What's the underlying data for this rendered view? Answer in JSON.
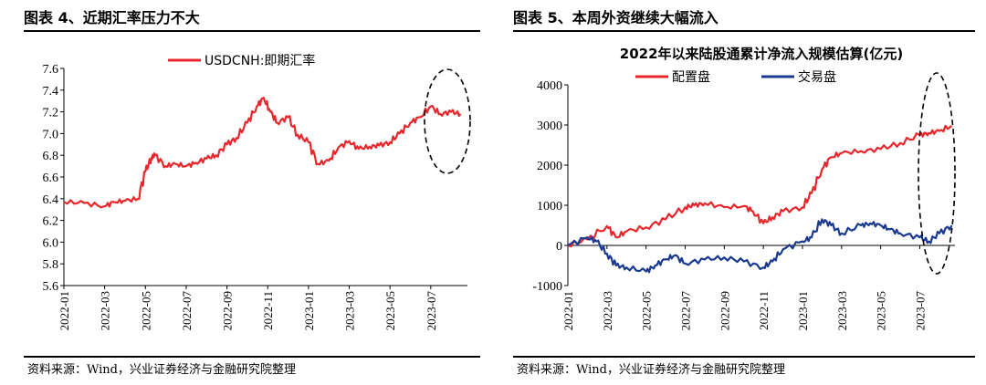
{
  "figures": [
    {
      "title": "图表 4、近期汇率压力不大",
      "source": "资料来源：Wind，兴业证券经济与金融研究院整理"
    },
    {
      "title": "图表 5、本周外资继续大幅流入",
      "source": "资料来源：Wind，兴业证券经济与金融研究院整理"
    }
  ],
  "chart_data": [
    {
      "type": "line",
      "title": "",
      "xlabel": "",
      "ylabel": "",
      "ylim": [
        5.6,
        7.6
      ],
      "yticks": [
        "7.6",
        "7.4",
        "7.2",
        "7.0",
        "6.8",
        "6.6",
        "6.4",
        "6.2",
        "6.0",
        "5.8",
        "5.6"
      ],
      "xticks": [
        "2022-01",
        "2022-03",
        "2022-05",
        "2022-07",
        "2022-09",
        "2022-11",
        "2023-01",
        "2023-03",
        "2023-05",
        "2023-07"
      ],
      "legend_position": "top-center",
      "grid": false,
      "annotation": "dashed-ellipse-around-latest-values",
      "series": [
        {
          "name": "USDCNH:即期汇率",
          "color": "#e8272c",
          "points": [
            [
              "2022-01-01",
              6.37
            ],
            [
              "2022-02-01",
              6.36
            ],
            [
              "2022-03-01",
              6.33
            ],
            [
              "2022-03-15",
              6.37
            ],
            [
              "2022-04-01",
              6.38
            ],
            [
              "2022-04-20",
              6.4
            ],
            [
              "2022-05-01",
              6.65
            ],
            [
              "2022-05-10",
              6.78
            ],
            [
              "2022-05-15",
              6.8
            ],
            [
              "2022-06-01",
              6.7
            ],
            [
              "2022-06-15",
              6.72
            ],
            [
              "2022-07-01",
              6.7
            ],
            [
              "2022-07-15",
              6.73
            ],
            [
              "2022-08-01",
              6.77
            ],
            [
              "2022-08-15",
              6.8
            ],
            [
              "2022-09-01",
              6.9
            ],
            [
              "2022-09-15",
              6.96
            ],
            [
              "2022-10-01",
              7.1
            ],
            [
              "2022-10-15",
              7.25
            ],
            [
              "2022-10-25",
              7.33
            ],
            [
              "2022-11-05",
              7.2
            ],
            [
              "2022-11-15",
              7.1
            ],
            [
              "2022-12-01",
              7.15
            ],
            [
              "2022-12-15",
              6.99
            ],
            [
              "2023-01-01",
              6.92
            ],
            [
              "2023-01-15",
              6.72
            ],
            [
              "2023-02-01",
              6.75
            ],
            [
              "2023-02-15",
              6.87
            ],
            [
              "2023-03-01",
              6.93
            ],
            [
              "2023-03-15",
              6.86
            ],
            [
              "2023-04-01",
              6.88
            ],
            [
              "2023-04-15",
              6.89
            ],
            [
              "2023-05-01",
              6.92
            ],
            [
              "2023-05-15",
              7.0
            ],
            [
              "2023-06-01",
              7.1
            ],
            [
              "2023-06-15",
              7.15
            ],
            [
              "2023-07-01",
              7.25
            ],
            [
              "2023-07-15",
              7.18
            ],
            [
              "2023-08-01",
              7.2
            ],
            [
              "2023-08-15",
              7.18
            ]
          ]
        }
      ]
    },
    {
      "type": "line",
      "title": "2022年以来陆股通累计净流入规模估算(亿元)",
      "xlabel": "",
      "ylabel": "",
      "ylim": [
        -1000,
        4000
      ],
      "yticks": [
        "4000",
        "3000",
        "2000",
        "1000",
        "0",
        "-1000"
      ],
      "xticks": [
        "2022-01",
        "2022-03",
        "2022-05",
        "2022-07",
        "2022-09",
        "2022-11",
        "2023-01",
        "2023-03",
        "2023-05",
        "2023-07"
      ],
      "legend_position": "top-center",
      "grid": false,
      "annotation": "dashed-ellipse-around-latest-values",
      "series": [
        {
          "name": "配置盘",
          "color": "#e8272c",
          "points": [
            [
              "2022-01-01",
              0
            ],
            [
              "2022-02-01",
              150
            ],
            [
              "2022-03-01",
              480
            ],
            [
              "2022-03-15",
              200
            ],
            [
              "2022-04-01",
              350
            ],
            [
              "2022-05-01",
              450
            ],
            [
              "2022-06-01",
              650
            ],
            [
              "2022-07-01",
              950
            ],
            [
              "2022-07-15",
              1000
            ],
            [
              "2022-08-01",
              1050
            ],
            [
              "2022-09-01",
              950
            ],
            [
              "2022-10-01",
              980
            ],
            [
              "2022-10-15",
              850
            ],
            [
              "2022-11-01",
              550
            ],
            [
              "2022-11-15",
              700
            ],
            [
              "2022-12-01",
              850
            ],
            [
              "2023-01-01",
              950
            ],
            [
              "2023-01-15",
              1300
            ],
            [
              "2023-02-01",
              1900
            ],
            [
              "2023-02-15",
              2200
            ],
            [
              "2023-03-01",
              2300
            ],
            [
              "2023-04-01",
              2350
            ],
            [
              "2023-05-01",
              2400
            ],
            [
              "2023-06-01",
              2550
            ],
            [
              "2023-07-01",
              2750
            ],
            [
              "2023-07-15",
              2800
            ],
            [
              "2023-08-01",
              2850
            ],
            [
              "2023-08-20",
              2980
            ]
          ]
        },
        {
          "name": "交易盘",
          "color": "#1a3a8f",
          "points": [
            [
              "2022-01-01",
              0
            ],
            [
              "2022-02-01",
              200
            ],
            [
              "2022-02-15",
              100
            ],
            [
              "2022-03-01",
              -200
            ],
            [
              "2022-03-15",
              -500
            ],
            [
              "2022-04-01",
              -550
            ],
            [
              "2022-05-01",
              -650
            ],
            [
              "2022-05-15",
              -500
            ],
            [
              "2022-06-01",
              -350
            ],
            [
              "2022-06-15",
              -250
            ],
            [
              "2022-07-01",
              -450
            ],
            [
              "2022-08-01",
              -350
            ],
            [
              "2022-09-01",
              -300
            ],
            [
              "2022-10-01",
              -400
            ],
            [
              "2022-11-01",
              -550
            ],
            [
              "2022-11-15",
              -400
            ],
            [
              "2022-12-01",
              -100
            ],
            [
              "2023-01-01",
              100
            ],
            [
              "2023-01-15",
              200
            ],
            [
              "2023-02-01",
              650
            ],
            [
              "2023-02-15",
              500
            ],
            [
              "2023-03-01",
              300
            ],
            [
              "2023-04-01",
              500
            ],
            [
              "2023-04-15",
              550
            ],
            [
              "2023-05-01",
              500
            ],
            [
              "2023-05-15",
              400
            ],
            [
              "2023-06-01",
              300
            ],
            [
              "2023-07-01",
              200
            ],
            [
              "2023-07-15",
              100
            ],
            [
              "2023-08-01",
              300
            ],
            [
              "2023-08-20",
              500
            ]
          ]
        }
      ]
    }
  ]
}
